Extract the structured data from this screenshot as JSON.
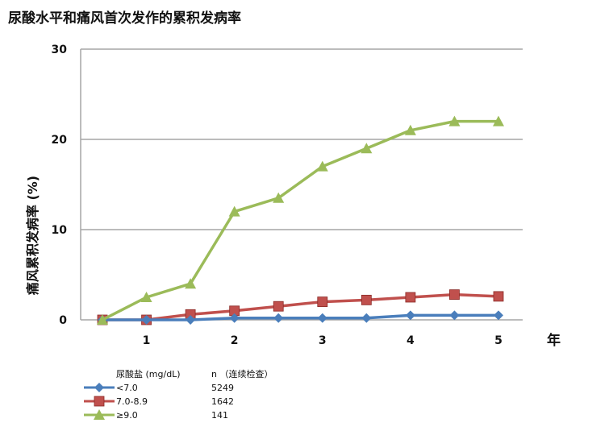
{
  "chart_data": {
    "type": "line",
    "title": "尿酸水平和痛风首次发作的累积发病率",
    "ylabel": "痛风累积发病率 (%)",
    "xlabel_unit": "年",
    "ylim": [
      0,
      30
    ],
    "yticks": [
      "0",
      "10",
      "20",
      "30"
    ],
    "xticks": [
      "1",
      "2",
      "3",
      "4",
      "5"
    ],
    "x": [
      0.5,
      1,
      1.5,
      2,
      2.5,
      3,
      3.5,
      4,
      4.5,
      5
    ],
    "grid": "horizontal",
    "legend_placement": "bottom-left",
    "legend_header_group": "尿酸盐 (mg/dL)",
    "legend_header_n": "n （连续检查）",
    "series": [
      {
        "name": "<7.0",
        "n": "5249",
        "color": "#4a7ebb",
        "marker": "diamond",
        "values": [
          0,
          0,
          0,
          0.2,
          0.2,
          0.2,
          0.2,
          0.5,
          0.5,
          0.5
        ]
      },
      {
        "name": "7.0-8.9",
        "n": "1642",
        "color": "#c0504d",
        "marker": "square",
        "values": [
          0,
          0,
          0.6,
          1.0,
          1.5,
          2.0,
          2.2,
          2.5,
          2.8,
          2.6
        ]
      },
      {
        "name": "≥9.0",
        "n": "141",
        "color": "#9bbb59",
        "marker": "triangle",
        "values": [
          0,
          2.5,
          4.0,
          12.0,
          13.5,
          17.0,
          19.0,
          21.0,
          22.0,
          22.0
        ]
      }
    ]
  }
}
